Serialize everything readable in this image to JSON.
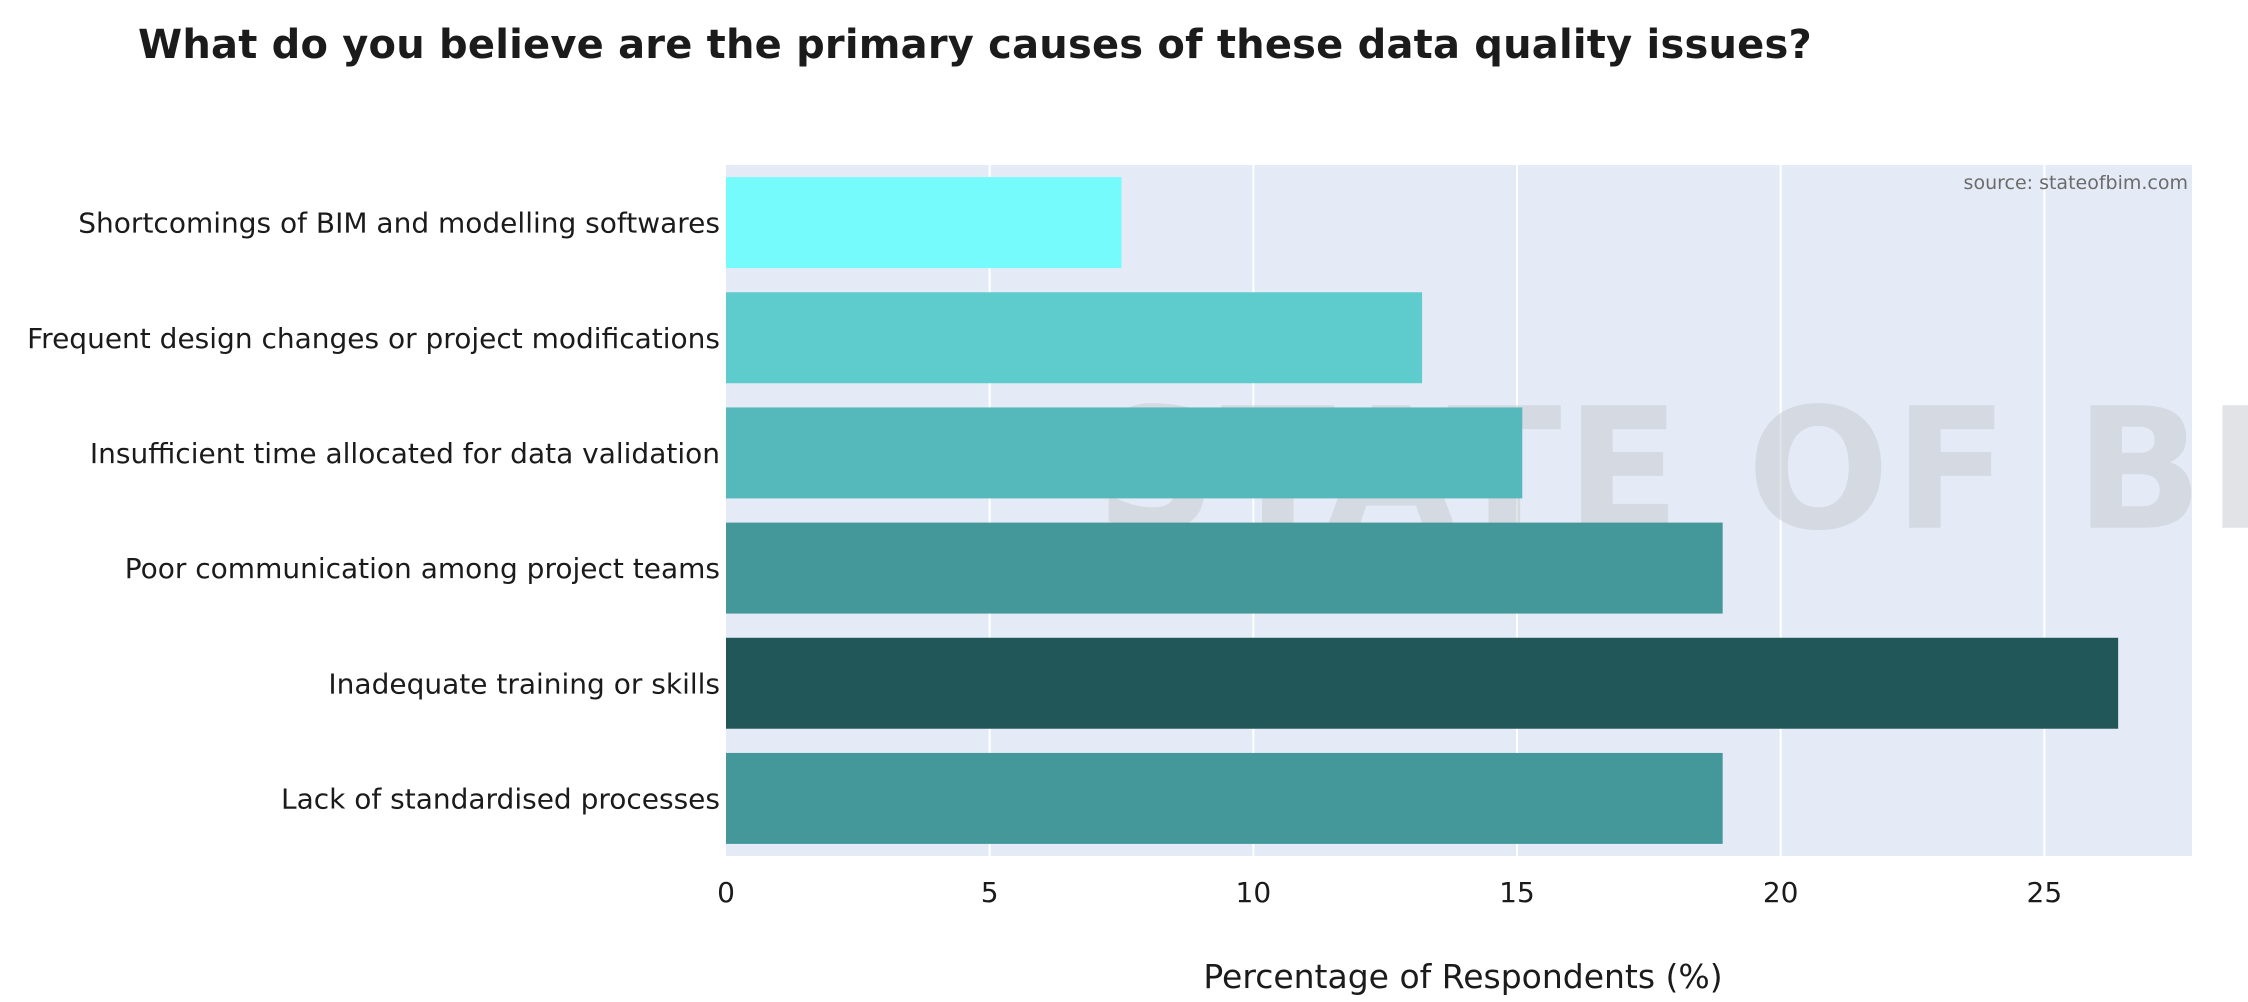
{
  "chart_data": {
    "type": "bar",
    "orientation": "horizontal",
    "title": "What do you believe are the primary causes of these data quality issues?",
    "xlabel": "Percentage of Respondents (%)",
    "ylabel": "",
    "xlim": [
      0,
      27.8
    ],
    "xticks": [
      0,
      5,
      10,
      15,
      20,
      25
    ],
    "grid": true,
    "source": "source: stateofbim.com",
    "watermark": "STATE OF BIM",
    "categories": [
      "Shortcomings of BIM and modelling softwares",
      "Frequent design changes or project modifications",
      "Insufficient time allocated for data validation",
      "Poor communication among project teams",
      "Inadequate training or skills",
      "Lack of standardised processes"
    ],
    "values": [
      7.5,
      13.2,
      15.1,
      18.9,
      26.4,
      18.9
    ],
    "colors": [
      "#76fbfc",
      "#5ecbcd",
      "#55b8bb",
      "#459899",
      "#22575a",
      "#459899"
    ],
    "plot_bg": "#e5ebf6",
    "grid_color": "#ffffff"
  }
}
